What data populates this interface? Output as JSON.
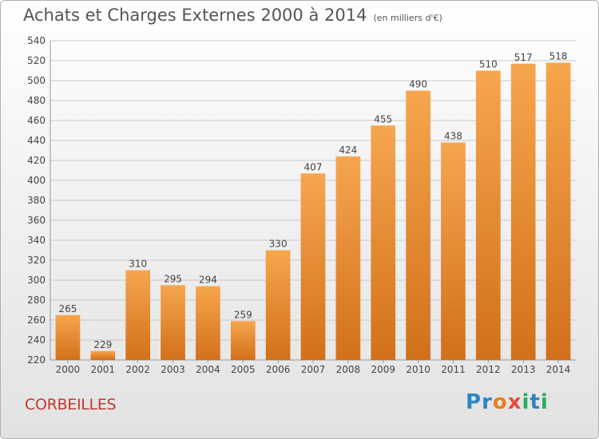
{
  "header": {
    "title": "Achats et Charges Externes 2000 à 2014",
    "unit": "(en milliers d'€)"
  },
  "footer": {
    "place": "CORBEILLES",
    "logo_letters": [
      "P",
      "r",
      "o",
      "x",
      "i",
      "t",
      "i"
    ],
    "logo_colors": [
      "#2e86c1",
      "#2e86c1",
      "#e67e22",
      "#e74c3c",
      "#27ae60",
      "#2e86c1",
      "#27ae60"
    ]
  },
  "colors": {
    "bar_light": "#f6a64e",
    "bar_dark": "#d2701a",
    "grid": "#c8c8c8",
    "text": "#444444"
  },
  "chart_data": {
    "type": "bar",
    "title": "Achats et Charges Externes 2000 à 2014",
    "subtitle": "(en milliers d'€)",
    "xlabel": "",
    "ylabel": "",
    "categories": [
      "2000",
      "2001",
      "2002",
      "2003",
      "2004",
      "2005",
      "2006",
      "2007",
      "2008",
      "2009",
      "2010",
      "2011",
      "2012",
      "2013",
      "2014"
    ],
    "values": [
      265,
      229,
      310,
      295,
      294,
      259,
      330,
      407,
      424,
      455,
      490,
      438,
      510,
      517,
      518
    ],
    "ylim": [
      220,
      540
    ],
    "yticks": [
      220,
      240,
      260,
      280,
      300,
      320,
      340,
      360,
      380,
      400,
      420,
      440,
      460,
      480,
      500,
      520,
      540
    ],
    "grid": true,
    "legend": "none"
  }
}
